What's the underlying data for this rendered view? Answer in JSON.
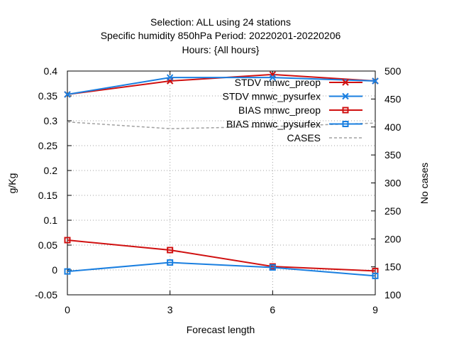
{
  "chart_data": {
    "type": "line",
    "title_lines": [
      "Selection: ALL using    24 stations",
      "Specific humidity 850hPa   Period: 20220201-20220206",
      "Hours: {All hours}"
    ],
    "xlabel": "Forecast length",
    "ylabel": "g/Kg",
    "y2label": "No cases",
    "x": [
      0,
      3,
      6,
      9
    ],
    "xlim": [
      0,
      9
    ],
    "ylim": [
      -0.05,
      0.4
    ],
    "y2lim": [
      100,
      500
    ],
    "x_ticks": [
      0,
      3,
      6,
      9
    ],
    "y_ticks": [
      -0.05,
      0,
      0.05,
      0.1,
      0.15,
      0.2,
      0.25,
      0.3,
      0.35,
      0.4
    ],
    "y_tick_labels": [
      "-0.05",
      "0",
      "0.05",
      "0.1",
      "0.15",
      "0.2",
      "0.25",
      "0.3",
      "0.35",
      "0.4"
    ],
    "y2_ticks": [
      100,
      150,
      200,
      250,
      300,
      350,
      400,
      450,
      500
    ],
    "y2_tick_labels": [
      "100",
      "150",
      "200",
      "250",
      "300",
      "350",
      "400",
      "450",
      "500"
    ],
    "grid": true,
    "legend_position": "top-right",
    "series": [
      {
        "name": "STDV mnwc_preop",
        "axis": "y",
        "values": [
          0.353,
          0.38,
          0.393,
          0.38
        ],
        "color": "#d01010",
        "marker": "x",
        "dash": ""
      },
      {
        "name": "STDV mnwc_pysurfex",
        "axis": "y",
        "values": [
          0.353,
          0.387,
          0.387,
          0.38
        ],
        "color": "#1a7fe0",
        "marker": "x",
        "dash": ""
      },
      {
        "name": "BIAS mnwc_preop",
        "axis": "y",
        "values": [
          0.06,
          0.04,
          0.007,
          -0.002
        ],
        "color": "#d01010",
        "marker": "square",
        "dash": ""
      },
      {
        "name": "BIAS mnwc_pysurfex",
        "axis": "y",
        "values": [
          -0.003,
          0.015,
          0.005,
          -0.012
        ],
        "color": "#1a7fe0",
        "marker": "square",
        "dash": ""
      },
      {
        "name": "CASES",
        "axis": "y2",
        "values": [
          409,
          397,
          401,
          407
        ],
        "color": "#a0a0a0",
        "marker": "",
        "dash": "4 3"
      }
    ]
  }
}
